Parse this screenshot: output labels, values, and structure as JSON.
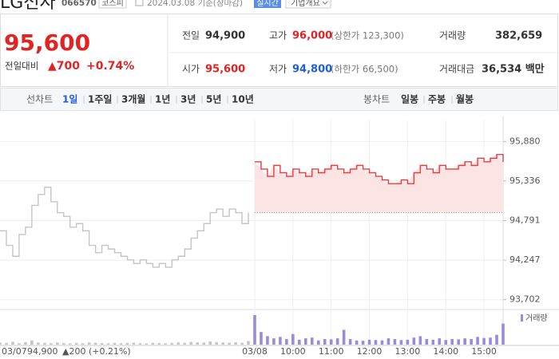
{
  "header": {
    "name": "LG전자",
    "code": "066570",
    "market": "코스피",
    "date": "2024.03.08 기준(장마감)",
    "realtime": "실시간",
    "company_info": "기업개요"
  },
  "price": {
    "current": "95,600",
    "change_label": "전일대비",
    "change": "▲700",
    "change_rate": "+0.74%"
  },
  "summary": {
    "rows": [
      [
        [
          "전일",
          "94,900",
          null
        ],
        [
          "고가",
          "96,000",
          "(상한가 123,300)"
        ],
        [
          "거래량",
          "382,659",
          null
        ]
      ],
      [
        [
          "시가",
          "95,600",
          null
        ],
        [
          "저가",
          "94,800",
          "(하한가 66,500)"
        ],
        [
          "거래대금",
          "36,534 백만",
          null
        ]
      ]
    ]
  },
  "tabs": {
    "line_label": "선차트",
    "line": [
      "1일",
      "1주일",
      "3개월",
      "1년",
      "3년",
      "5년",
      "10년"
    ],
    "candle_label": "봉차트",
    "candle": [
      "일봉",
      "주봉",
      "월봉"
    ]
  },
  "day_summary": {
    "price": "94,900",
    "change": "▲200 (+0.21%)"
  },
  "chart_data": {
    "type": "line",
    "categories": [
      "03/07",
      null,
      null,
      null,
      null,
      null,
      null,
      null,
      null,
      null,
      null,
      null,
      null,
      null,
      null,
      null,
      null,
      null,
      null,
      null,
      null,
      null,
      null,
      null,
      null,
      null,
      null,
      null,
      null,
      null,
      null,
      null,
      null,
      null,
      null,
      null,
      null,
      null,
      null,
      null,
      "03/08",
      null,
      null,
      null,
      null,
      null,
      "10:00",
      null,
      null,
      null,
      null,
      null,
      "11:00",
      null,
      null,
      null,
      null,
      null,
      "12:00",
      null,
      null,
      null,
      null,
      null,
      "13:00",
      null,
      null,
      null,
      null,
      null,
      "14:00",
      null,
      null,
      null,
      null,
      null,
      "15:00",
      null,
      null,
      null
    ],
    "series": [
      {
        "color": "#c4c4c4",
        "values": [
          94650,
          94450,
          94300,
          94600,
          94700,
          95000,
          95150,
          95250,
          95050,
          94900,
          94850,
          94700,
          94750,
          94650,
          94450,
          94350,
          94450,
          94400,
          94350,
          94300,
          94250,
          94200,
          94250,
          94200,
          94150,
          94200,
          94150,
          94250,
          94300,
          94400,
          94550,
          94650,
          94750,
          94900,
          94950,
          94850,
          94950,
          94900,
          94750,
          94900,
          null,
          null,
          null,
          null,
          null,
          null,
          null,
          null,
          null,
          null,
          null,
          null,
          null,
          null,
          null,
          null,
          null,
          null,
          null,
          null,
          null,
          null,
          null,
          null,
          null,
          null,
          null,
          null,
          null,
          null,
          null,
          null,
          null,
          null,
          null,
          null,
          null,
          null,
          null,
          null
        ]
      },
      {
        "color": "#ee3b3b",
        "values": [
          null,
          null,
          null,
          null,
          null,
          null,
          null,
          null,
          null,
          null,
          null,
          null,
          null,
          null,
          null,
          null,
          null,
          null,
          null,
          null,
          null,
          null,
          null,
          null,
          null,
          null,
          null,
          null,
          null,
          null,
          null,
          null,
          null,
          null,
          null,
          null,
          null,
          null,
          null,
          null,
          95600,
          95500,
          95400,
          95550,
          95450,
          95400,
          95500,
          95450,
          95400,
          95500,
          95450,
          95500,
          95550,
          95500,
          95450,
          95500,
          95550,
          95500,
          95450,
          95400,
          95350,
          95300,
          95300,
          95350,
          95300,
          95450,
          95550,
          95500,
          95450,
          95550,
          95500,
          95500,
          95550,
          95600,
          95550,
          95650,
          95600,
          95650,
          95700,
          95600
        ]
      }
    ],
    "baseline": 94900,
    "area_color": "#fde4e4",
    "ylim": [
      93600,
      96180
    ],
    "yticks": [
      {
        "value": 95880,
        "label": "95,880"
      },
      {
        "value": 95336,
        "label": "95,336"
      },
      {
        "value": 94791,
        "label": "94,791"
      },
      {
        "value": 94247,
        "label": "94,247"
      },
      {
        "value": 93702,
        "label": "93,702"
      }
    ],
    "grid": true,
    "volume_label": "거래량",
    "volume_series": [
      {
        "color": "#c4c4c4",
        "values": [
          3000,
          2500,
          4000,
          2000,
          3500,
          6000,
          3000,
          2500,
          2000,
          3000,
          2200,
          1800,
          2500,
          2000,
          3000,
          2600,
          2100,
          1900,
          2400,
          2000,
          2300,
          2800,
          2000,
          1700,
          2500,
          2200,
          1900,
          2400,
          3100,
          2600,
          3800,
          3200,
          2900,
          4500,
          3600,
          3000,
          2700,
          3300,
          2500,
          5200,
          null,
          null,
          null,
          null,
          null,
          null,
          null,
          null,
          null,
          null,
          null,
          null,
          null,
          null,
          null,
          null,
          null,
          null,
          null,
          null,
          null,
          null,
          null,
          null,
          null,
          null,
          null,
          null,
          null,
          null,
          null,
          null,
          null,
          null,
          null,
          null,
          null,
          null,
          null,
          null
        ]
      },
      {
        "color": "#9b8ad9",
        "values": [
          null,
          null,
          null,
          null,
          null,
          null,
          null,
          null,
          null,
          null,
          null,
          null,
          null,
          null,
          null,
          null,
          null,
          null,
          null,
          null,
          null,
          null,
          null,
          null,
          null,
          null,
          null,
          null,
          null,
          null,
          null,
          null,
          null,
          null,
          null,
          null,
          null,
          null,
          null,
          null,
          42000,
          18000,
          12000,
          9000,
          11000,
          8000,
          15000,
          7000,
          9000,
          10000,
          6000,
          8000,
          7500,
          9000,
          21000,
          8000,
          6000,
          5500,
          7000,
          6500,
          6000,
          9000,
          8000,
          6500,
          7000,
          10000,
          12000,
          8000,
          7000,
          9000,
          6500,
          8000,
          7500,
          9000,
          8000,
          11000,
          9500,
          10000,
          14000,
          30000
        ]
      }
    ]
  }
}
